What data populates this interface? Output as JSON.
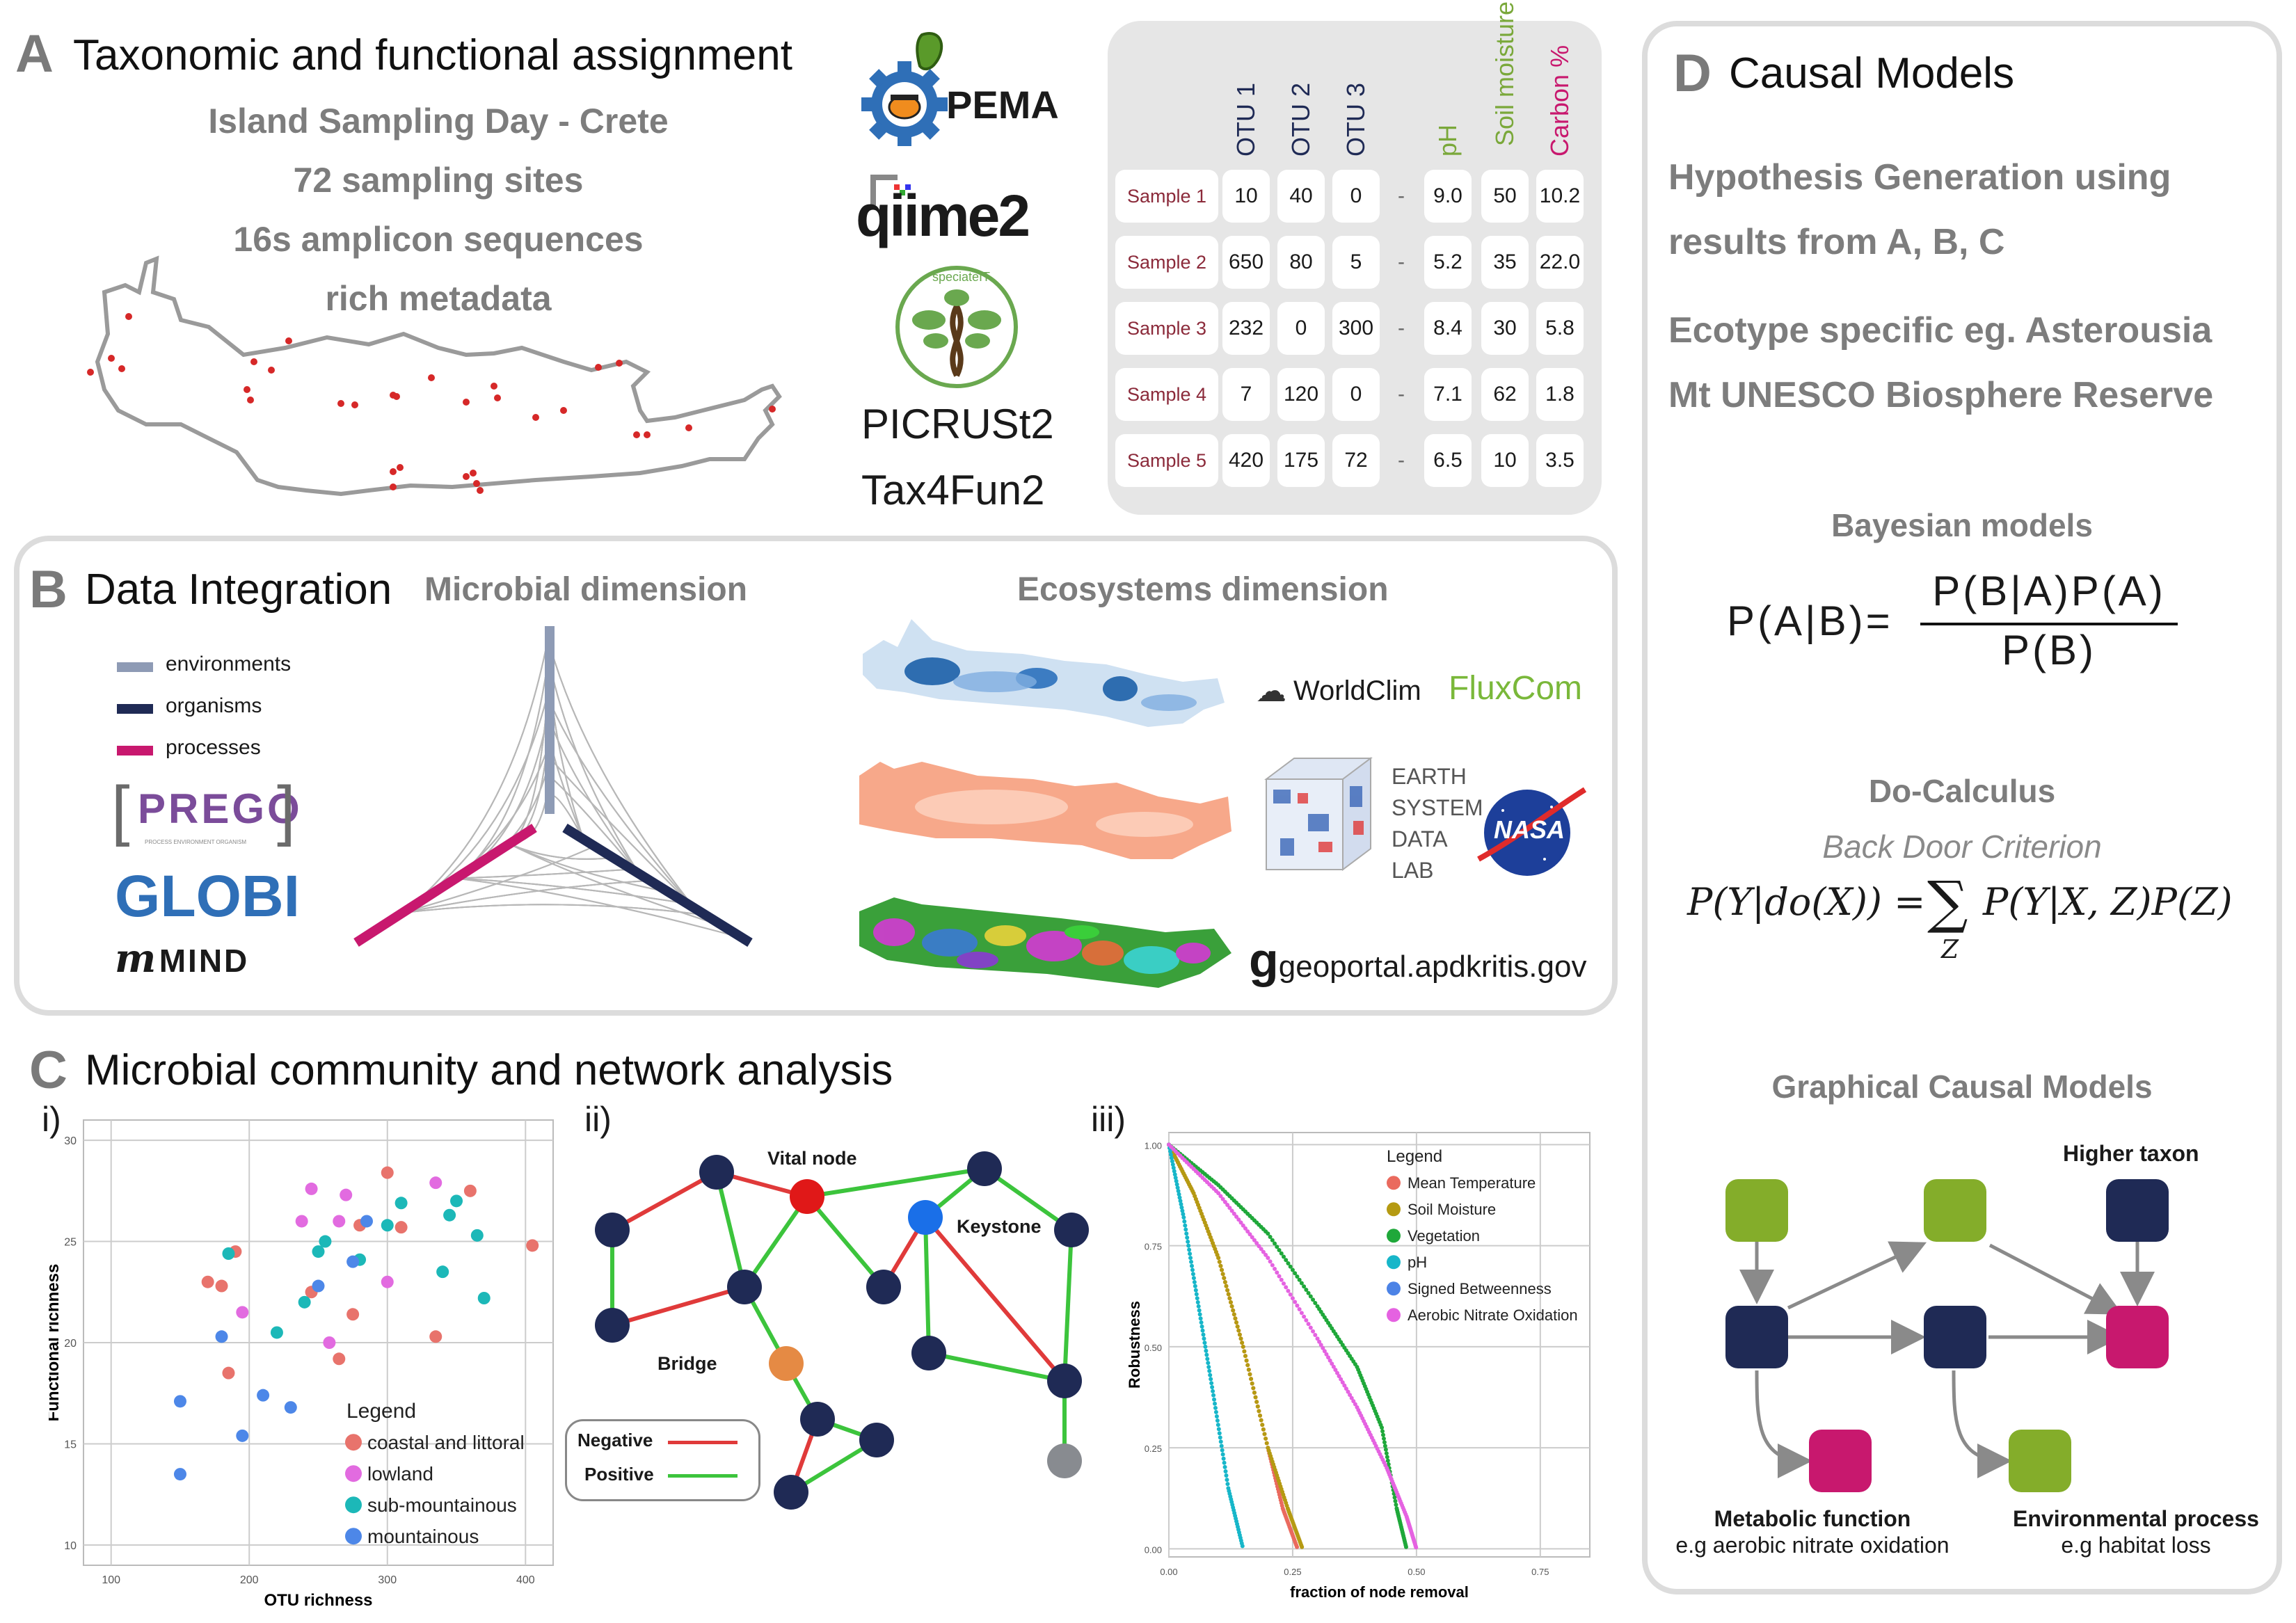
{
  "panel_a": {
    "letter": "A",
    "title": "Taxonomic and functional assignment",
    "lines": [
      "Island Sampling Day - Crete",
      "72 sampling sites",
      "16s amplicon sequences",
      "rich metadata"
    ],
    "tools": {
      "pema": "PEMA",
      "qiime": "qiime2",
      "picrust": "PICRUSt2",
      "tax4fun": "Tax4Fun2",
      "speciate": "speciateIT"
    },
    "table": {
      "headers": [
        "OTU 1",
        "OTU 2",
        "OTU 3",
        "pH",
        "Soil moisture %",
        "Carbon %"
      ],
      "header_colors": [
        "#1f2a55",
        "#1f2a55",
        "#1f2a55",
        "#7aa83a",
        "#7aa83a",
        "#c8186e"
      ],
      "rows": [
        {
          "label": "Sample 1",
          "cells": [
            "10",
            "40",
            "0",
            "-",
            "9.0",
            "50",
            "10.2"
          ]
        },
        {
          "label": "Sample 2",
          "cells": [
            "650",
            "80",
            "5",
            "-",
            "5.2",
            "35",
            "22.0"
          ]
        },
        {
          "label": "Sample 3",
          "cells": [
            "232",
            "0",
            "300",
            "-",
            "8.4",
            "30",
            "5.8"
          ]
        },
        {
          "label": "Sample 4",
          "cells": [
            "7",
            "120",
            "0",
            "-",
            "7.1",
            "62",
            "1.8"
          ]
        },
        {
          "label": "Sample 5",
          "cells": [
            "420",
            "175",
            "72",
            "-",
            "6.5",
            "10",
            "3.5"
          ]
        }
      ]
    }
  },
  "panel_b": {
    "letter": "B",
    "title": "Data Integration",
    "microbial_title": "Microbial dimension",
    "ecosystems_title": "Ecosystems dimension",
    "legend": [
      {
        "label": "environments",
        "color": "#8e9bb5"
      },
      {
        "label": "organisms",
        "color": "#1f2a55"
      },
      {
        "label": "processes",
        "color": "#c8186e"
      }
    ],
    "logos": {
      "prego": "PREGO",
      "prego_sub": "PROCESS ENVIRONMENT ORGANISM",
      "globi": "GLOBI",
      "mind": "MIND"
    },
    "sources": {
      "worldclim": "WorldClim",
      "fluxcom": "FluxCom",
      "esdl": [
        "EARTH",
        "SYSTEM",
        "DATA",
        "LAB"
      ],
      "nasa": "NASA",
      "geoportal": "geoportal.apdkritis.gov"
    }
  },
  "panel_c": {
    "letter": "C",
    "title": "Microbial community and network analysis",
    "sub_i": "i)",
    "sub_ii": "ii)",
    "sub_iii": "iii)",
    "network": {
      "vital_node": "Vital node",
      "keystone": "Keystone",
      "bridge": "Bridge",
      "legend_negative": "Negative",
      "legend_positive": "Positive",
      "negative_color": "#e03a3a",
      "positive_color": "#3cc43c"
    }
  },
  "panel_d": {
    "letter": "D",
    "title": "Causal Models",
    "hyp_lines": [
      "Hypothesis Generation using",
      "results from A, B, C"
    ],
    "eco_lines": [
      "Ecotype specific eg. Asterousia",
      "Mt UNESCO Biosphere Reserve"
    ],
    "bayes_title": "Bayesian models",
    "bayes_lhs": "P(A|B)=",
    "bayes_num": "P(B|A)P(A)",
    "bayes_den": "P(B)",
    "do_title": "Do-Calculus",
    "do_sub": "Back Door Criterion",
    "do_lhs": "P(Y|do(X)) =",
    "do_rhs": "P(Y|X, Z)P(Z)",
    "do_sum": "∑",
    "do_sub_index": "Z",
    "graph_title": "Graphical Causal Models",
    "higher_taxon": "Higher taxon",
    "metabolic": "Metabolic function",
    "metabolic_sub": "e.g aerobic nitrate oxidation",
    "environmental": "Environmental process",
    "environmental_sub": "e.g habitat loss",
    "colors": {
      "green": "#84ad2a",
      "navy": "#1f2a55",
      "magenta": "#c8186e"
    }
  },
  "chart_data": [
    {
      "type": "scatter",
      "xlabel": "OTU richness",
      "ylabel": "Functional richness",
      "xlim": [
        80,
        420
      ],
      "ylim": [
        9,
        31
      ],
      "xticks": [
        100,
        200,
        300,
        400
      ],
      "yticks": [
        10,
        15,
        20,
        25,
        30
      ],
      "grid": true,
      "legend_title": "Legend",
      "legend_position": "bottom-right",
      "series": [
        {
          "name": "coastal and littoral",
          "color": "#e8736c",
          "x": [
            170,
            180,
            185,
            190,
            245,
            265,
            275,
            300,
            310,
            335,
            360,
            405,
            280
          ],
          "y": [
            23.0,
            22.8,
            18.5,
            24.5,
            22.5,
            19.2,
            21.4,
            28.4,
            25.7,
            20.3,
            27.5,
            24.8,
            25.8
          ]
        },
        {
          "name": "lowland",
          "color": "#e26be0",
          "x": [
            195,
            238,
            245,
            258,
            265,
            270,
            300,
            335
          ],
          "y": [
            21.5,
            26.0,
            27.6,
            20.0,
            26.0,
            27.3,
            23.0,
            27.9
          ]
        },
        {
          "name": "sub-mountainous",
          "color": "#1cb8b8",
          "x": [
            185,
            220,
            240,
            250,
            255,
            280,
            300,
            310,
            340,
            345,
            350,
            365,
            370
          ],
          "y": [
            24.4,
            20.5,
            22.0,
            24.5,
            25.0,
            24.1,
            25.8,
            26.9,
            23.5,
            26.3,
            27.0,
            25.3,
            22.2
          ]
        },
        {
          "name": "mountainous",
          "color": "#4d87e8",
          "x": [
            150,
            150,
            180,
            195,
            210,
            230,
            250,
            275,
            285
          ],
          "y": [
            17.1,
            13.5,
            20.3,
            15.4,
            17.4,
            16.8,
            22.8,
            24.0,
            26.0
          ]
        }
      ]
    },
    {
      "type": "scatter",
      "xlabel": "fraction of node removal",
      "ylabel": "Robustness",
      "xlim": [
        0,
        0.85
      ],
      "ylim": [
        -0.02,
        1.03
      ],
      "xticks": [
        0.0,
        0.25,
        0.5,
        0.75
      ],
      "yticks": [
        0.0,
        0.25,
        0.5,
        0.75,
        1.0
      ],
      "grid": true,
      "legend_title": "Legend",
      "legend_position": "top-right",
      "series": [
        {
          "name": "Mean Temperature",
          "color": "#ea6a5e",
          "x": [
            0.0,
            0.05,
            0.1,
            0.15,
            0.2,
            0.23,
            0.26
          ],
          "y": [
            1.0,
            0.88,
            0.72,
            0.5,
            0.25,
            0.1,
            0.0
          ]
        },
        {
          "name": "Soil Moisture",
          "color": "#b59a12",
          "x": [
            0.0,
            0.05,
            0.1,
            0.15,
            0.2,
            0.24,
            0.27
          ],
          "y": [
            1.0,
            0.88,
            0.72,
            0.5,
            0.25,
            0.1,
            0.0
          ]
        },
        {
          "name": "Vegetation",
          "color": "#1fa83a",
          "x": [
            0.0,
            0.1,
            0.2,
            0.3,
            0.38,
            0.43,
            0.46,
            0.48
          ],
          "y": [
            1.0,
            0.9,
            0.78,
            0.6,
            0.45,
            0.3,
            0.1,
            0.0
          ]
        },
        {
          "name": "pH",
          "color": "#17b6c9",
          "x": [
            0.0,
            0.03,
            0.06,
            0.09,
            0.12,
            0.15
          ],
          "y": [
            1.0,
            0.82,
            0.6,
            0.38,
            0.15,
            0.0
          ]
        },
        {
          "name": "Signed Betweenness",
          "color": "#4c83e6",
          "x": [],
          "y": []
        },
        {
          "name": "Aerobic Nitrate Oxidation",
          "color": "#e562e1",
          "x": [
            0.0,
            0.1,
            0.2,
            0.3,
            0.38,
            0.44,
            0.48,
            0.5
          ],
          "y": [
            1.0,
            0.88,
            0.72,
            0.52,
            0.35,
            0.2,
            0.08,
            0.0
          ]
        }
      ]
    }
  ]
}
